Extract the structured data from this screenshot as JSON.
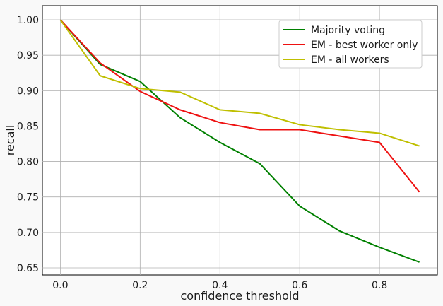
{
  "chart_data": {
    "type": "line",
    "title": "",
    "xlabel": "confidence threshold",
    "ylabel": "recall",
    "xlim": [
      -0.045,
      0.945
    ],
    "ylim": [
      0.64,
      1.02
    ],
    "xticks": [
      0.0,
      0.2,
      0.4,
      0.6,
      0.8
    ],
    "xtick_labels": [
      "0.0",
      "0.2",
      "0.4",
      "0.6",
      "0.8"
    ],
    "yticks": [
      0.65,
      0.7,
      0.75,
      0.8,
      0.85,
      0.9,
      0.95,
      1.0
    ],
    "ytick_labels": [
      "0.65",
      "0.70",
      "0.75",
      "0.80",
      "0.85",
      "0.90",
      "0.95",
      "1.00"
    ],
    "grid": true,
    "legend_position": "top-right",
    "x": [
      0.0,
      0.1,
      0.2,
      0.3,
      0.4,
      0.5,
      0.6,
      0.7,
      0.8,
      0.9
    ],
    "series": [
      {
        "name": "Majority voting",
        "color": "#008000",
        "values": [
          1.0,
          0.937,
          0.913,
          0.862,
          0.827,
          0.797,
          0.737,
          0.702,
          0.679,
          0.658
        ]
      },
      {
        "name": "EM - best worker only",
        "color": "#ee1111",
        "values": [
          1.0,
          0.939,
          0.899,
          0.873,
          0.855,
          0.845,
          0.845,
          0.836,
          0.827,
          0.757
        ]
      },
      {
        "name": "EM - all workers",
        "color": "#bfbf00",
        "values": [
          1.0,
          0.921,
          0.903,
          0.898,
          0.873,
          0.868,
          0.852,
          0.845,
          0.84,
          0.822
        ]
      }
    ]
  }
}
